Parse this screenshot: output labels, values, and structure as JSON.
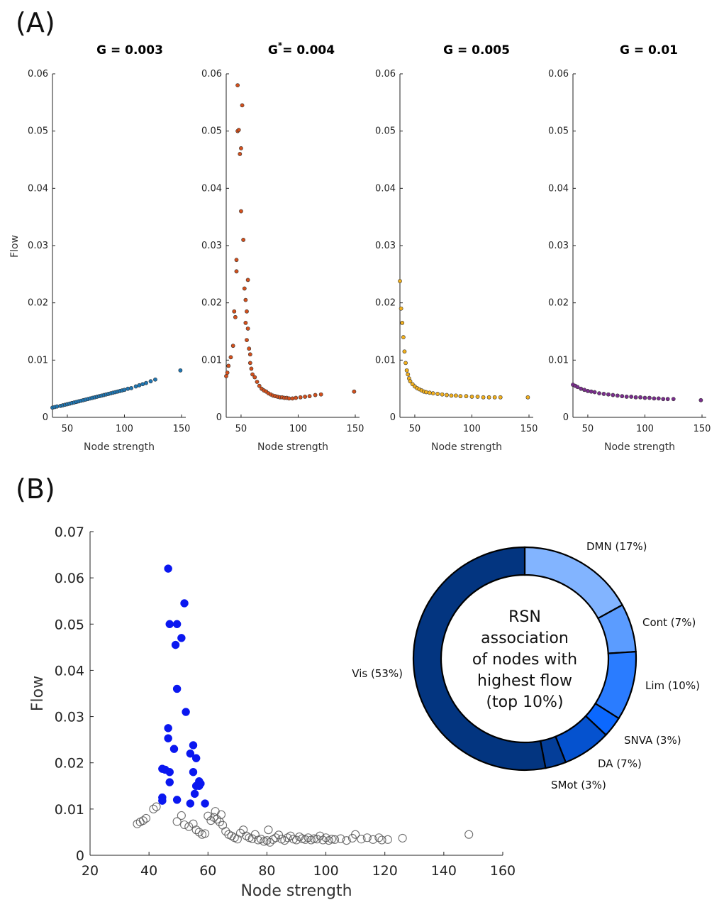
{
  "panel_a_label": "(A)",
  "panel_b_label": "(B)",
  "chart_data": [
    {
      "type": "scatter",
      "title": "G = 0.003",
      "xlabel": "Node strength",
      "ylabel": "Flow",
      "xlim": [
        37,
        150
      ],
      "ylim": [
        0,
        0.06
      ],
      "xticks": [
        "50",
        "100",
        "150"
      ],
      "yticks": [
        "0",
        "0.01",
        "0.02",
        "0.03",
        "0.04",
        "0.05",
        "0.06"
      ],
      "color": "#1f77b4",
      "points": [
        [
          37,
          0.0017
        ],
        [
          39,
          0.0018
        ],
        [
          41,
          0.0019
        ],
        [
          44,
          0.002
        ],
        [
          46,
          0.0021
        ],
        [
          48,
          0.0022
        ],
        [
          50,
          0.0023
        ],
        [
          52,
          0.0024
        ],
        [
          54,
          0.0025
        ],
        [
          56,
          0.0026
        ],
        [
          58,
          0.0027
        ],
        [
          60,
          0.0028
        ],
        [
          62,
          0.0029
        ],
        [
          64,
          0.003
        ],
        [
          66,
          0.0031
        ],
        [
          68,
          0.0032
        ],
        [
          70,
          0.0033
        ],
        [
          72,
          0.0034
        ],
        [
          74,
          0.0035
        ],
        [
          76,
          0.0036
        ],
        [
          78,
          0.0037
        ],
        [
          80,
          0.0038
        ],
        [
          82,
          0.0039
        ],
        [
          84,
          0.004
        ],
        [
          86,
          0.0041
        ],
        [
          88,
          0.0042
        ],
        [
          90,
          0.0043
        ],
        [
          92,
          0.0044
        ],
        [
          94,
          0.0045
        ],
        [
          96,
          0.0046
        ],
        [
          98,
          0.0047
        ],
        [
          100,
          0.0048
        ],
        [
          103,
          0.005
        ],
        [
          106,
          0.0051
        ],
        [
          110,
          0.0054
        ],
        [
          113,
          0.0056
        ],
        [
          116,
          0.0058
        ],
        [
          119,
          0.006
        ],
        [
          123,
          0.0063
        ],
        [
          127,
          0.0066
        ],
        [
          149,
          0.0082
        ]
      ]
    },
    {
      "type": "scatter",
      "title": "= 0.004",
      "title_prefix": "G",
      "title_sup": "*",
      "xlabel": "Node strength",
      "xlim": [
        37,
        150
      ],
      "ylim": [
        0,
        0.06
      ],
      "xticks": [
        "50",
        "100",
        "150"
      ],
      "yticks": [
        "0",
        "0.01",
        "0.02",
        "0.03",
        "0.04",
        "0.05",
        "0.06"
      ],
      "color": "#d4501c",
      "points": [
        [
          37,
          0.0072
        ],
        [
          38,
          0.0078
        ],
        [
          39,
          0.009
        ],
        [
          41,
          0.0105
        ],
        [
          43,
          0.0125
        ],
        [
          44,
          0.0185
        ],
        [
          45,
          0.0175
        ],
        [
          46,
          0.0255
        ],
        [
          46,
          0.0275
        ],
        [
          47,
          0.058
        ],
        [
          47,
          0.05
        ],
        [
          48,
          0.0502
        ],
        [
          49,
          0.046
        ],
        [
          50,
          0.047
        ],
        [
          50,
          0.036
        ],
        [
          51,
          0.0545
        ],
        [
          52,
          0.031
        ],
        [
          53,
          0.0225
        ],
        [
          54,
          0.0205
        ],
        [
          54,
          0.0165
        ],
        [
          55,
          0.0185
        ],
        [
          55,
          0.0135
        ],
        [
          56,
          0.024
        ],
        [
          56,
          0.0155
        ],
        [
          57,
          0.012
        ],
        [
          58,
          0.011
        ],
        [
          58,
          0.0095
        ],
        [
          59,
          0.0085
        ],
        [
          60,
          0.0075
        ],
        [
          62,
          0.007
        ],
        [
          64,
          0.0062
        ],
        [
          66,
          0.0055
        ],
        [
          68,
          0.005
        ],
        [
          70,
          0.0047
        ],
        [
          72,
          0.0045
        ],
        [
          74,
          0.0042
        ],
        [
          76,
          0.004
        ],
        [
          78,
          0.0038
        ],
        [
          80,
          0.0037
        ],
        [
          82,
          0.0036
        ],
        [
          84,
          0.0035
        ],
        [
          86,
          0.0035
        ],
        [
          88,
          0.0034
        ],
        [
          90,
          0.0034
        ],
        [
          92,
          0.0033
        ],
        [
          95,
          0.0033
        ],
        [
          98,
          0.0034
        ],
        [
          102,
          0.0035
        ],
        [
          106,
          0.0036
        ],
        [
          110,
          0.0037
        ],
        [
          115,
          0.0039
        ],
        [
          120,
          0.004
        ],
        [
          149,
          0.0045
        ]
      ]
    },
    {
      "type": "scatter",
      "title": "G = 0.005",
      "xlabel": "Node strength",
      "xlim": [
        37,
        150
      ],
      "ylim": [
        0,
        0.06
      ],
      "xticks": [
        "50",
        "100",
        "150"
      ],
      "yticks": [
        "0",
        "0.01",
        "0.02",
        "0.03",
        "0.04",
        "0.05",
        "0.06"
      ],
      "color": "#f2b01e",
      "points": [
        [
          37,
          0.0238
        ],
        [
          38,
          0.019
        ],
        [
          39,
          0.0165
        ],
        [
          40,
          0.014
        ],
        [
          41,
          0.0115
        ],
        [
          42,
          0.0095
        ],
        [
          43,
          0.0082
        ],
        [
          44,
          0.0075
        ],
        [
          45,
          0.0068
        ],
        [
          46,
          0.0063
        ],
        [
          48,
          0.0058
        ],
        [
          50,
          0.0054
        ],
        [
          52,
          0.0051
        ],
        [
          54,
          0.0049
        ],
        [
          56,
          0.0047
        ],
        [
          58,
          0.0045
        ],
        [
          60,
          0.0044
        ],
        [
          63,
          0.0043
        ],
        [
          66,
          0.0042
        ],
        [
          70,
          0.0041
        ],
        [
          74,
          0.004
        ],
        [
          78,
          0.0039
        ],
        [
          82,
          0.0038
        ],
        [
          86,
          0.0038
        ],
        [
          90,
          0.0037
        ],
        [
          95,
          0.0037
        ],
        [
          100,
          0.0036
        ],
        [
          105,
          0.0036
        ],
        [
          110,
          0.0035
        ],
        [
          115,
          0.0035
        ],
        [
          120,
          0.0035
        ],
        [
          125,
          0.0035
        ],
        [
          149,
          0.0035
        ]
      ]
    },
    {
      "type": "scatter",
      "title": "G = 0.01",
      "xlabel": "Node strength",
      "xlim": [
        37,
        150
      ],
      "ylim": [
        0,
        0.06
      ],
      "xticks": [
        "50",
        "100",
        "150"
      ],
      "yticks": [
        "0",
        "0.01",
        "0.02",
        "0.03",
        "0.04",
        "0.05",
        "0.06"
      ],
      "color": "#7b2d8e",
      "points": [
        [
          37,
          0.0057
        ],
        [
          39,
          0.0055
        ],
        [
          41,
          0.0053
        ],
        [
          44,
          0.005
        ],
        [
          47,
          0.0048
        ],
        [
          50,
          0.0046
        ],
        [
          53,
          0.0045
        ],
        [
          56,
          0.0044
        ],
        [
          60,
          0.0042
        ],
        [
          64,
          0.0041
        ],
        [
          68,
          0.004
        ],
        [
          72,
          0.0039
        ],
        [
          76,
          0.0038
        ],
        [
          80,
          0.0037
        ],
        [
          84,
          0.0036
        ],
        [
          88,
          0.0036
        ],
        [
          92,
          0.0035
        ],
        [
          96,
          0.0035
        ],
        [
          100,
          0.0034
        ],
        [
          104,
          0.0034
        ],
        [
          108,
          0.0033
        ],
        [
          112,
          0.0033
        ],
        [
          116,
          0.0032
        ],
        [
          120,
          0.0032
        ],
        [
          125,
          0.0032
        ],
        [
          149,
          0.003
        ]
      ]
    },
    {
      "type": "scatter",
      "xlabel": "Node strength",
      "ylabel": "Flow",
      "xlim": [
        20,
        160
      ],
      "ylim": [
        0,
        0.07
      ],
      "xticks": [
        "20",
        "40",
        "60",
        "80",
        "100",
        "120",
        "140",
        "160"
      ],
      "yticks": [
        "0",
        "0.01",
        "0.02",
        "0.03",
        "0.04",
        "0.05",
        "0.06",
        "0.07"
      ],
      "series": [
        {
          "highlight": true,
          "color": "#0a17f0",
          "points": [
            [
              46.5,
              0.062
            ],
            [
              52,
              0.0545
            ],
            [
              47,
              0.05
            ],
            [
              49.5,
              0.05
            ],
            [
              51,
              0.047
            ],
            [
              49,
              0.0455
            ],
            [
              49.5,
              0.036
            ],
            [
              52.5,
              0.031
            ],
            [
              46.5,
              0.0275
            ],
            [
              46.5,
              0.0253
            ],
            [
              55,
              0.0238
            ],
            [
              48.5,
              0.023
            ],
            [
              54,
              0.022
            ],
            [
              56,
              0.021
            ],
            [
              44.5,
              0.0187
            ],
            [
              45.5,
              0.0185
            ],
            [
              47,
              0.018
            ],
            [
              55,
              0.018
            ],
            [
              57,
              0.016
            ],
            [
              57.5,
              0.0155
            ],
            [
              56,
              0.015
            ],
            [
              57,
              0.015
            ],
            [
              47,
              0.0158
            ],
            [
              55.5,
              0.0133
            ],
            [
              44.5,
              0.0125
            ],
            [
              44.5,
              0.0118
            ],
            [
              49.5,
              0.012
            ],
            [
              54,
              0.0112
            ],
            [
              59,
              0.0112
            ]
          ]
        },
        {
          "highlight": false,
          "color": "#555555",
          "points": [
            [
              36,
              0.0068
            ],
            [
              37,
              0.0072
            ],
            [
              38,
              0.0075
            ],
            [
              39,
              0.008
            ],
            [
              41.5,
              0.01
            ],
            [
              42.5,
              0.0105
            ],
            [
              49.5,
              0.0073
            ],
            [
              51,
              0.0086
            ],
            [
              52,
              0.0066
            ],
            [
              53.5,
              0.0062
            ],
            [
              55,
              0.0068
            ],
            [
              56,
              0.0055
            ],
            [
              57,
              0.005
            ],
            [
              58,
              0.0045
            ],
            [
              59,
              0.0047
            ],
            [
              60,
              0.0085
            ],
            [
              61,
              0.0075
            ],
            [
              62,
              0.0082
            ],
            [
              62.5,
              0.0095
            ],
            [
              63,
              0.0078
            ],
            [
              64,
              0.0072
            ],
            [
              64.5,
              0.0088
            ],
            [
              65,
              0.0065
            ],
            [
              66,
              0.0052
            ],
            [
              67,
              0.0045
            ],
            [
              68,
              0.0042
            ],
            [
              69,
              0.0038
            ],
            [
              70,
              0.0035
            ],
            [
              71,
              0.0048
            ],
            [
              72,
              0.0055
            ],
            [
              73,
              0.0042
            ],
            [
              74,
              0.0038
            ],
            [
              75,
              0.0036
            ],
            [
              76,
              0.0045
            ],
            [
              77,
              0.0033
            ],
            [
              78,
              0.0035
            ],
            [
              79,
              0.003
            ],
            [
              80,
              0.0032
            ],
            [
              80.5,
              0.0055
            ],
            [
              81,
              0.0028
            ],
            [
              82,
              0.0034
            ],
            [
              83,
              0.0038
            ],
            [
              84,
              0.0044
            ],
            [
              85,
              0.0035
            ],
            [
              86,
              0.0032
            ],
            [
              87,
              0.0038
            ],
            [
              88,
              0.0042
            ],
            [
              89,
              0.0035
            ],
            [
              90,
              0.0033
            ],
            [
              91,
              0.004
            ],
            [
              92,
              0.0036
            ],
            [
              93,
              0.0034
            ],
            [
              94,
              0.0038
            ],
            [
              95,
              0.0033
            ],
            [
              96,
              0.0036
            ],
            [
              97,
              0.0035
            ],
            [
              98,
              0.0042
            ],
            [
              99,
              0.0033
            ],
            [
              100,
              0.0038
            ],
            [
              101,
              0.0032
            ],
            [
              102,
              0.0035
            ],
            [
              103,
              0.0034
            ],
            [
              105,
              0.0036
            ],
            [
              107,
              0.0032
            ],
            [
              109,
              0.0037
            ],
            [
              110,
              0.0045
            ],
            [
              112,
              0.0035
            ],
            [
              114,
              0.0038
            ],
            [
              116,
              0.0034
            ],
            [
              118,
              0.0038
            ],
            [
              119,
              0.0033
            ],
            [
              121,
              0.0034
            ],
            [
              126,
              0.0037
            ],
            [
              148.5,
              0.0045
            ]
          ]
        }
      ]
    },
    {
      "type": "pie",
      "center_text": [
        "RSN",
        "association",
        "of nodes with",
        "highest flow",
        "(top 10%)"
      ],
      "slices": [
        {
          "label": "DMN (17%)",
          "value": 17,
          "color": "#82b4ff"
        },
        {
          "label": "Cont  (7%)",
          "value": 7,
          "color": "#5b9cff"
        },
        {
          "label": "Lim (10%)",
          "value": 10,
          "color": "#2a7cff"
        },
        {
          "label": "SNVA  (3%)",
          "value": 3,
          "color": "#0b68ff"
        },
        {
          "label": "DA  (7%)",
          "value": 7,
          "color": "#0552cf"
        },
        {
          "label": "SMot  (3%)",
          "value": 3,
          "color": "#043e99"
        },
        {
          "label": "Vis (53%)",
          "value": 53,
          "color": "#033580"
        }
      ]
    }
  ]
}
